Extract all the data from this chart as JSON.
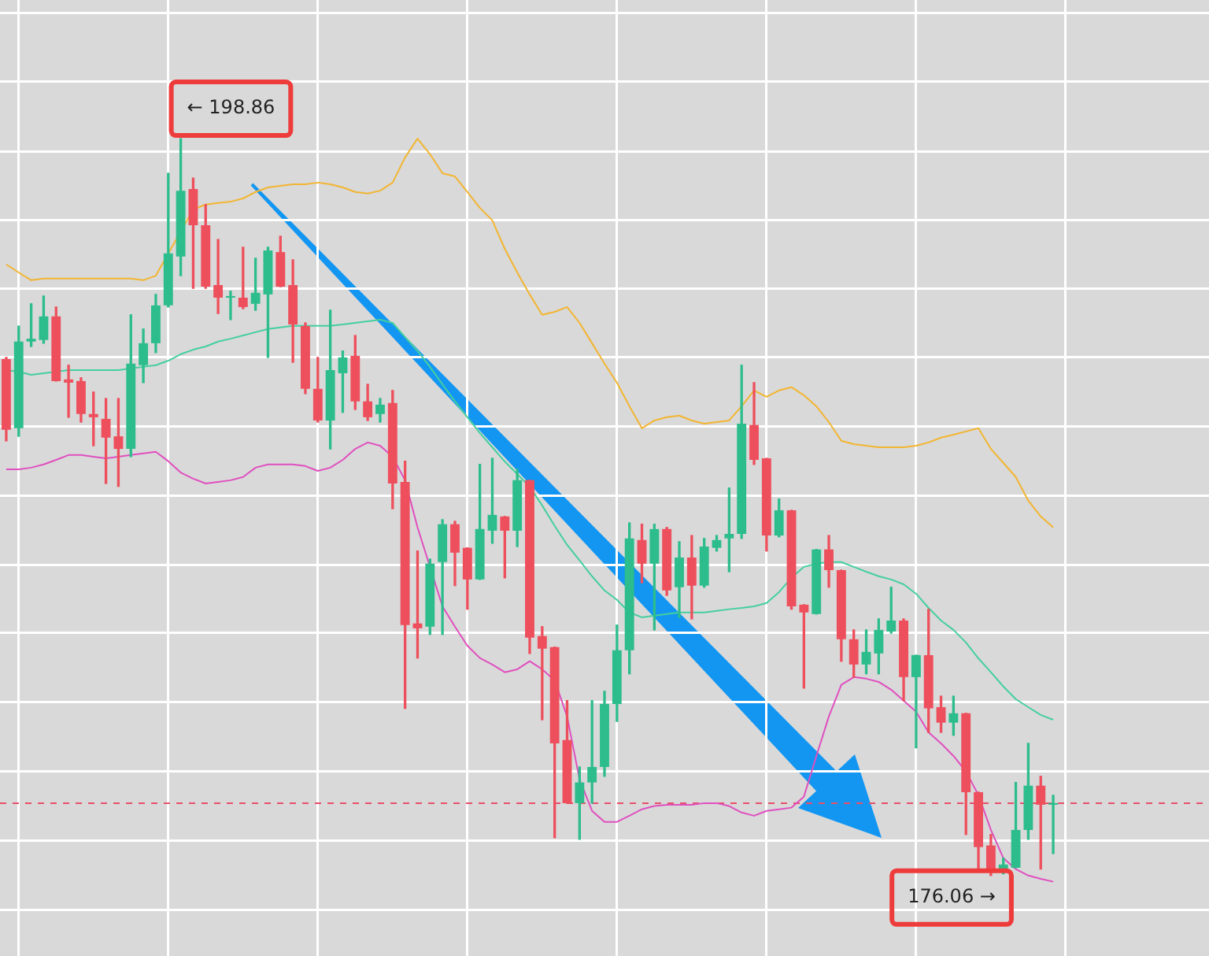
{
  "chart_data": {
    "type": "candlestick",
    "categories": [
      null,
      null,
      null,
      null,
      null,
      null,
      null,
      null,
      null,
      null,
      null,
      null,
      null,
      null,
      null,
      null,
      null,
      null,
      null,
      null,
      null,
      null,
      null,
      null,
      null,
      null,
      null,
      null,
      null,
      null,
      null,
      null,
      null,
      null,
      null,
      null,
      null,
      null,
      null,
      null,
      null,
      null,
      null,
      null,
      null,
      null,
      null,
      null,
      null,
      null,
      null,
      null,
      null,
      null,
      null,
      null,
      null,
      null,
      null,
      null,
      null,
      null,
      null,
      null,
      null,
      null,
      null,
      null,
      null,
      null,
      null,
      null,
      null,
      null,
      null,
      null,
      null,
      null,
      null,
      null,
      null,
      null,
      null,
      null,
      null,
      null,
      null,
      null,
      null,
      null,
      null,
      null,
      null,
      null,
      null,
      null,
      null
    ],
    "ohlc": [
      [
        192.04,
        192.09,
        189.51,
        189.85
      ],
      [
        189.9,
        193.06,
        189.65,
        192.58
      ],
      [
        192.58,
        193.75,
        192.43,
        192.67
      ],
      [
        192.63,
        193.99,
        192.53,
        193.36
      ],
      [
        193.36,
        193.65,
        191.36,
        191.36
      ],
      [
        191.41,
        191.85,
        190.24,
        191.31
      ],
      [
        191.36,
        191.46,
        190.09,
        190.34
      ],
      [
        190.34,
        191.02,
        189.36,
        190.24
      ],
      [
        190.19,
        190.82,
        188.19,
        189.61
      ],
      [
        189.65,
        190.82,
        188.1,
        189.26
      ],
      [
        189.26,
        193.41,
        189.02,
        191.9
      ],
      [
        191.85,
        192.97,
        191.31,
        192.53
      ],
      [
        192.53,
        194.04,
        192.24,
        193.7
      ],
      [
        193.7,
        197.79,
        193.65,
        195.31
      ],
      [
        195.21,
        198.86,
        194.62,
        197.25
      ],
      [
        197.3,
        197.64,
        194.23,
        196.18
      ],
      [
        196.18,
        196.82,
        194.23,
        194.28
      ],
      [
        194.33,
        195.74,
        193.45,
        193.94
      ],
      [
        193.94,
        194.14,
        193.26,
        193.99
      ],
      [
        193.94,
        195.5,
        193.6,
        193.65
      ],
      [
        193.75,
        195.16,
        193.55,
        194.09
      ],
      [
        194.04,
        195.5,
        192.09,
        195.4
      ],
      [
        195.35,
        195.84,
        194.28,
        194.28
      ],
      [
        194.33,
        195.11,
        191.94,
        193.11
      ],
      [
        193.06,
        193.16,
        190.97,
        191.12
      ],
      [
        191.12,
        192.09,
        190.09,
        190.14
      ],
      [
        190.14,
        193.55,
        189.26,
        191.7
      ],
      [
        191.6,
        192.29,
        190.39,
        192.09
      ],
      [
        192.14,
        192.77,
        190.48,
        190.73
      ],
      [
        190.73,
        191.26,
        190.14,
        190.24
      ],
      [
        190.34,
        190.82,
        190.09,
        190.63
      ],
      [
        190.68,
        191.07,
        187.41,
        188.19
      ],
      [
        188.24,
        188.88,
        181.23,
        183.81
      ],
      [
        183.86,
        186.1,
        182.79,
        183.71
      ],
      [
        183.76,
        185.85,
        183.52,
        185.71
      ],
      [
        185.76,
        187.07,
        183.52,
        186.93
      ],
      [
        186.93,
        187.02,
        185.03,
        186.05
      ],
      [
        186.2,
        186.2,
        184.3,
        185.22
      ],
      [
        185.22,
        188.78,
        185.22,
        186.78
      ],
      [
        186.73,
        188.97,
        186.34,
        187.22
      ],
      [
        187.17,
        187.17,
        185.27,
        186.73
      ],
      [
        186.73,
        188.63,
        186.24,
        188.29
      ],
      [
        188.29,
        188.29,
        182.93,
        183.42
      ],
      [
        183.47,
        183.76,
        180.88,
        183.08
      ],
      [
        183.13,
        183.13,
        177.23,
        180.15
      ],
      [
        180.25,
        181.47,
        178.3,
        178.3
      ],
      [
        178.3,
        179.42,
        177.18,
        178.94
      ],
      [
        178.94,
        181.47,
        178.3,
        179.42
      ],
      [
        179.42,
        181.76,
        179.13,
        181.37
      ],
      [
        181.37,
        183.81,
        180.83,
        183.03
      ],
      [
        183.03,
        186.97,
        182.3,
        186.49
      ],
      [
        186.44,
        186.93,
        185.12,
        185.71
      ],
      [
        185.71,
        186.93,
        183.66,
        186.78
      ],
      [
        186.78,
        186.83,
        184.73,
        184.88
      ],
      [
        184.98,
        186.39,
        184.05,
        185.9
      ],
      [
        185.9,
        186.58,
        184.0,
        185.03
      ],
      [
        185.03,
        186.49,
        184.98,
        186.24
      ],
      [
        186.2,
        186.58,
        186.1,
        186.44
      ],
      [
        186.49,
        188.05,
        185.46,
        186.63
      ],
      [
        186.63,
        191.85,
        186.49,
        190.04
      ],
      [
        190.0,
        191.31,
        188.78,
        188.92
      ],
      [
        188.97,
        188.97,
        186.1,
        186.58
      ],
      [
        186.58,
        187.71,
        186.54,
        187.36
      ],
      [
        187.36,
        187.36,
        184.3,
        184.39
      ],
      [
        184.44,
        184.44,
        181.86,
        184.2
      ],
      [
        184.15,
        186.15,
        184.15,
        186.15
      ],
      [
        186.15,
        186.58,
        184.98,
        185.51
      ],
      [
        185.51,
        185.51,
        182.69,
        183.37
      ],
      [
        183.37,
        183.66,
        182.2,
        182.59
      ],
      [
        182.59,
        183.66,
        182.3,
        182.98
      ],
      [
        182.93,
        184.0,
        182.3,
        183.66
      ],
      [
        183.61,
        184.98,
        183.56,
        183.95
      ],
      [
        183.95,
        184.0,
        181.47,
        182.2
      ],
      [
        182.2,
        182.88,
        180.01,
        182.88
      ],
      [
        182.88,
        184.3,
        180.49,
        181.23
      ],
      [
        181.27,
        181.61,
        180.49,
        180.79
      ],
      [
        180.79,
        181.61,
        180.4,
        181.08
      ],
      [
        181.08,
        181.08,
        177.33,
        178.64
      ],
      [
        178.64,
        178.64,
        176.26,
        176.94
      ],
      [
        176.99,
        177.33,
        176.06,
        176.21
      ],
      [
        176.21,
        176.6,
        176.11,
        176.4
      ],
      [
        176.3,
        178.94,
        176.3,
        177.47
      ],
      [
        177.47,
        180.15,
        177.18,
        178.84
      ],
      [
        178.84,
        179.13,
        176.26,
        178.25
      ],
      [
        178.25,
        178.54,
        176.74,
        178.3
      ],
      null,
      null,
      null,
      null,
      null,
      null,
      null,
      null,
      null,
      null,
      null,
      null
    ],
    "colors": [
      "#ee4f5c",
      "#2dbd8c",
      "#2dbd8c",
      "#2dbd8c",
      "#ee4f5c",
      "#ee4f5c",
      "#ee4f5c",
      "#ee4f5c",
      "#ee4f5c",
      "#ee4f5c",
      "#2dbd8c",
      "#2dbd8c",
      "#2dbd8c",
      "#2dbd8c",
      "#2dbd8c",
      "#ee4f5c",
      "#ee4f5c",
      "#ee4f5c",
      "#2dbd8c",
      "#ee4f5c",
      "#2dbd8c",
      "#2dbd8c",
      "#ee4f5c",
      "#ee4f5c",
      "#ee4f5c",
      "#ee4f5c",
      "#2dbd8c",
      "#2dbd8c",
      "#ee4f5c",
      "#ee4f5c",
      "#2dbd8c",
      "#ee4f5c",
      "#ee4f5c",
      "#ee4f5c",
      "#2dbd8c",
      "#2dbd8c",
      "#ee4f5c",
      "#ee4f5c",
      "#2dbd8c",
      "#2dbd8c",
      "#ee4f5c",
      "#2dbd8c",
      "#ee4f5c",
      "#ee4f5c",
      "#ee4f5c",
      "#ee4f5c",
      "#2dbd8c",
      "#2dbd8c",
      "#2dbd8c",
      "#2dbd8c",
      "#2dbd8c",
      "#ee4f5c",
      "#2dbd8c",
      "#ee4f5c",
      "#2dbd8c",
      "#ee4f5c",
      "#2dbd8c",
      "#2dbd8c",
      "#2dbd8c",
      "#2dbd8c",
      "#ee4f5c",
      "#ee4f5c",
      "#2dbd8c",
      "#ee4f5c",
      "#ee4f5c",
      "#2dbd8c",
      "#ee4f5c",
      "#ee4f5c",
      "#ee4f5c",
      "#2dbd8c",
      "#2dbd8c",
      "#2dbd8c",
      "#ee4f5c",
      "#2dbd8c",
      "#ee4f5c",
      "#ee4f5c",
      "#2dbd8c",
      "#ee4f5c",
      "#ee4f5c",
      "#ee4f5c",
      "#2dbd8c",
      "#2dbd8c",
      "#2dbd8c",
      "#ee4f5c",
      "#2dbd8c",
      null,
      null,
      null,
      null,
      null,
      null,
      null,
      null,
      null,
      null,
      null,
      null
    ],
    "series": [
      {
        "type": "line",
        "color": "#f2b531",
        "values": [
          194.97,
          194.72,
          194.48,
          194.53,
          194.53,
          194.53,
          194.53,
          194.53,
          194.53,
          194.53,
          194.53,
          194.48,
          194.62,
          null,
          null,
          196.67,
          196.82,
          196.87,
          196.91,
          197.01,
          197.21,
          197.35,
          197.4,
          197.45,
          197.45,
          197.5,
          197.45,
          197.35,
          197.21,
          197.16,
          197.25,
          197.5,
          198.28,
          198.86,
          198.38,
          197.79,
          197.69,
          197.21,
          196.72,
          196.33,
          195.45,
          194.72,
          194.04,
          193.41,
          193.5,
          193.65,
          193.16,
          192.53,
          191.9,
          191.31,
          190.58,
          189.9,
          190.14,
          190.24,
          190.29,
          190.14,
          190.04,
          190.09,
          190.14,
          190.58,
          191.07,
          190.87,
          191.07,
          191.17,
          190.92,
          190.58,
          190.09,
          189.51,
          189.41,
          189.36,
          189.31,
          189.31,
          189.31,
          189.36,
          189.46,
          189.61,
          189.7,
          189.8,
          189.9,
          189.26,
          188.83,
          188.39,
          187.66,
          187.17,
          186.83,
          null,
          null,
          null,
          null,
          null,
          null,
          null,
          null,
          null,
          null,
          null,
          null
        ]
      },
      {
        "type": "line",
        "color": "#45cf9e",
        "values": [
          191.7,
          191.65,
          191.55,
          191.6,
          191.65,
          191.7,
          191.7,
          191.7,
          191.7,
          191.7,
          191.75,
          191.8,
          191.85,
          191.99,
          192.19,
          192.33,
          192.43,
          192.58,
          192.67,
          192.77,
          192.87,
          192.97,
          193.02,
          193.07,
          193.07,
          193.07,
          193.07,
          193.11,
          193.16,
          193.21,
          193.26,
          193.16,
          192.72,
          192.29,
          191.8,
          191.26,
          190.73,
          190.24,
          189.75,
          189.31,
          188.87,
          188.48,
          188.09,
          187.51,
          186.88,
          186.29,
          185.81,
          185.32,
          184.88,
          184.59,
          184.2,
          184.05,
          184.1,
          184.15,
          184.2,
          184.2,
          184.2,
          184.25,
          184.3,
          184.34,
          184.39,
          184.49,
          184.83,
          185.27,
          185.61,
          185.71,
          185.76,
          185.76,
          185.61,
          185.46,
          185.32,
          185.22,
          185.07,
          184.78,
          184.34,
          183.95,
          183.66,
          183.27,
          182.78,
          182.35,
          181.91,
          181.52,
          181.27,
          181.03,
          180.88,
          null,
          null,
          null,
          null,
          null,
          null,
          null,
          null,
          null,
          null,
          null,
          null
        ]
      },
      {
        "type": "line",
        "color": "#e04fbf",
        "values": [
          188.63,
          188.63,
          188.68,
          188.78,
          188.92,
          189.07,
          189.07,
          189.02,
          188.97,
          189.02,
          189.07,
          189.12,
          189.17,
          188.88,
          188.53,
          188.34,
          188.19,
          188.24,
          188.29,
          188.39,
          188.68,
          188.78,
          188.78,
          188.78,
          188.73,
          188.58,
          188.68,
          188.92,
          189.26,
          189.46,
          189.36,
          189.02,
          188.29,
          186.83,
          null,
          184.39,
          183.76,
          183.17,
          182.79,
          182.59,
          182.35,
          182.44,
          182.69,
          182.44,
          182.1,
          180.98,
          179.03,
          178.06,
          177.72,
          177.72,
          177.91,
          178.11,
          178.21,
          178.25,
          178.25,
          178.25,
          178.3,
          178.3,
          178.21,
          178.01,
          177.91,
          178.06,
          178.11,
          178.16,
          178.5,
          179.76,
          180.98,
          181.96,
          182.2,
          182.15,
          182.05,
          181.81,
          181.47,
          181.13,
          180.49,
          180.15,
          179.76,
          179.28,
          178.55,
          177.47,
          176.6,
          176.26,
          176.06,
          175.96,
          175.87,
          null,
          null,
          null,
          null,
          null,
          null,
          null,
          null,
          null,
          null,
          null,
          null
        ]
      }
    ],
    "ylim": [
      173.57,
      203.15
    ],
    "yticks": [
      {
        "value": 202.76,
        "label": null
      },
      {
        "value": 200.62,
        "label": null
      },
      {
        "value": 198.47,
        "label": null
      },
      {
        "value": 196.33,
        "label": null
      },
      {
        "value": 194.23,
        "label": null
      },
      {
        "value": 192.09,
        "label": null
      },
      {
        "value": 189.95,
        "label": null
      },
      {
        "value": 187.8,
        "label": null
      },
      {
        "value": 185.66,
        "label": null
      },
      {
        "value": 183.56,
        "label": null
      },
      {
        "value": 181.42,
        "label": null
      },
      {
        "value": 179.28,
        "label": null
      },
      {
        "value": 177.13,
        "label": null
      },
      {
        "value": 174.99,
        "label": null
      }
    ],
    "grid": true,
    "tick_labels": false,
    "ref_lines": [
      {
        "axis": "y",
        "value": 178.3,
        "color": "#e8506a",
        "line_style": "dashed"
      }
    ],
    "annotations": [
      "← 198.86",
      "176.06 →"
    ]
  }
}
